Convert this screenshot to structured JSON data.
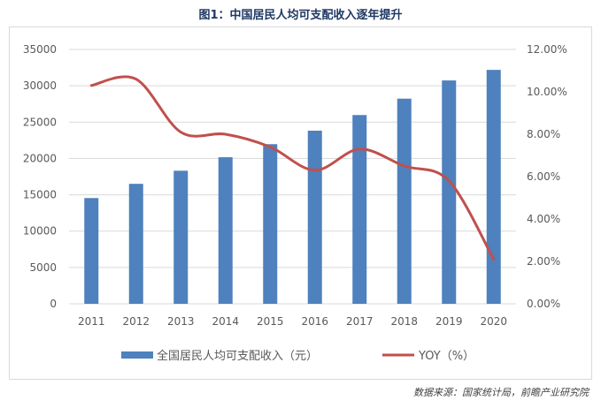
{
  "title": "图1：中国居民人均可支配收入逐年提升",
  "source": "数据来源：国家统计局，前瞻产业研究院",
  "colors": {
    "bar": "#4e81bd",
    "line": "#c0504d",
    "grid": "#d9d9d9",
    "axis_text": "#595959"
  },
  "chart_data": {
    "type": "bar+line",
    "categories": [
      "2011",
      "2012",
      "2013",
      "2014",
      "2015",
      "2016",
      "2017",
      "2018",
      "2019",
      "2020"
    ],
    "series": [
      {
        "name": "全国居民人均可支配收入（元）",
        "type": "bar",
        "axis": "left",
        "values": [
          14551,
          16510,
          18311,
          20167,
          21966,
          23821,
          25974,
          28228,
          30733,
          32189
        ]
      },
      {
        "name": "YOY（%）",
        "type": "line",
        "axis": "right",
        "values": [
          10.3,
          10.6,
          8.1,
          8.0,
          7.4,
          6.3,
          7.3,
          6.5,
          5.8,
          2.1
        ]
      }
    ],
    "y_left": {
      "range": [
        0,
        35000
      ],
      "ticks": [
        "0",
        "5000",
        "10000",
        "15000",
        "20000",
        "25000",
        "30000",
        "35000"
      ]
    },
    "y_right": {
      "range": [
        0,
        12
      ],
      "ticks": [
        "0.00%",
        "2.00%",
        "4.00%",
        "6.00%",
        "8.00%",
        "10.00%",
        "12.00%"
      ]
    },
    "grid": true,
    "legend": "bottom"
  }
}
